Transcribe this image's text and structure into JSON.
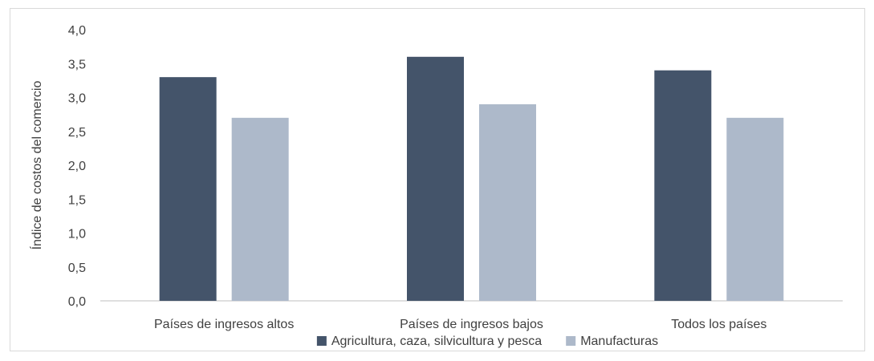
{
  "chart_data": {
    "type": "bar",
    "title": "",
    "xlabel": "",
    "ylabel": "Índice de costos del comercio",
    "categories": [
      "Países de ingresos altos",
      "Países de ingresos bajos",
      "Todos los países"
    ],
    "series": [
      {
        "name": "Agricultura, caza, silvicultura y pesca",
        "values": [
          3.3,
          3.6,
          3.4
        ],
        "color": "#44546a"
      },
      {
        "name": "Manufacturas",
        "values": [
          2.7,
          2.9,
          2.7
        ],
        "color": "#adb9ca"
      }
    ],
    "ylim": [
      0,
      4
    ],
    "yticks": [
      "0,0",
      "0,5",
      "1,0",
      "1,5",
      "2,0",
      "2,5",
      "3,0",
      "3,5",
      "4,0"
    ],
    "grid": false,
    "legend_position": "bottom"
  }
}
